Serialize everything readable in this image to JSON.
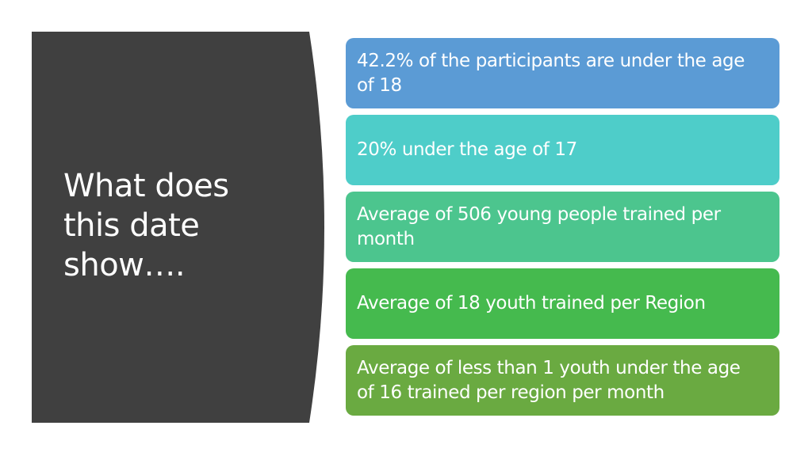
{
  "slide": {
    "title": "What does this date show….",
    "panel_color": "#404040",
    "items": [
      {
        "text": "42.2% of the participants are under the age of 18",
        "color": "#5B9BD5"
      },
      {
        "text": "20% under the age of 17",
        "color": "#4ECDC9"
      },
      {
        "text": "Average of 506 young people trained per month",
        "color": "#4CC58E"
      },
      {
        "text": "Average of 18 youth trained per Region",
        "color": "#45BA4E"
      },
      {
        "text": "Average of less than 1 youth under the age of 16 trained per region per month",
        "color": "#6AAA41"
      }
    ]
  }
}
